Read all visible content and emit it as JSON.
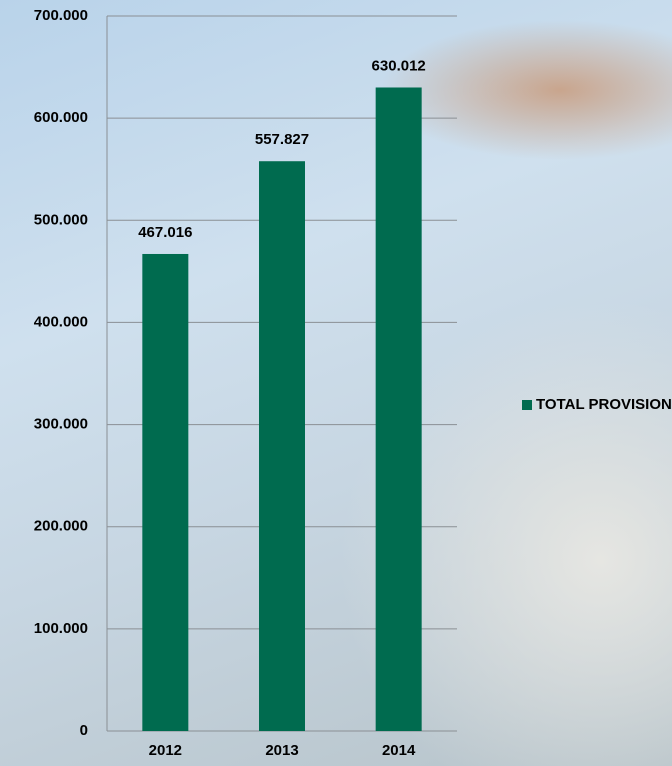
{
  "chart_data": {
    "type": "bar",
    "categories": [
      "2012",
      "2013",
      "2014"
    ],
    "series": [
      {
        "name": "TOTAL PROVISIONS",
        "color": "#006b4f",
        "values": [
          467016,
          557827,
          630012
        ],
        "value_labels": [
          "467.016",
          "557.827",
          "630.012"
        ]
      }
    ],
    "ylim": [
      0,
      700000
    ],
    "yticks": [
      {
        "value": 0,
        "label": "0"
      },
      {
        "value": 100000,
        "label": "100.000"
      },
      {
        "value": 200000,
        "label": "200.000"
      },
      {
        "value": 300000,
        "label": "300.000"
      },
      {
        "value": 400000,
        "label": "400.000"
      },
      {
        "value": 500000,
        "label": "500.000"
      },
      {
        "value": 600000,
        "label": "600.000"
      },
      {
        "value": 700000,
        "label": "700.000"
      }
    ],
    "grid": true,
    "legend": "right"
  }
}
